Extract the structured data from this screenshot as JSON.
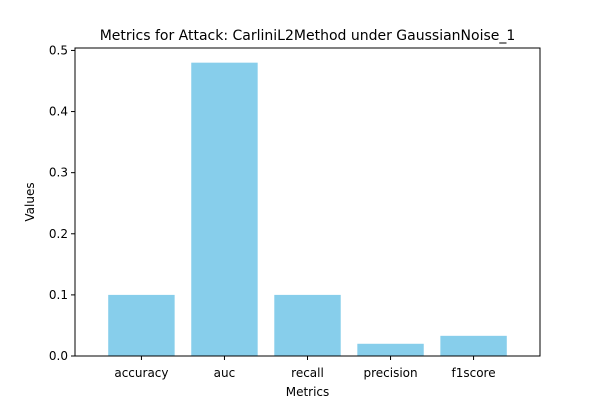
{
  "chart_data": {
    "type": "bar",
    "title": "Metrics for Attack: CarliniL2Method under GaussianNoise_1",
    "xlabel": "Metrics",
    "ylabel": "Values",
    "categories": [
      "accuracy",
      "auc",
      "recall",
      "precision",
      "f1score"
    ],
    "values": [
      0.1,
      0.48,
      0.1,
      0.02,
      0.033
    ],
    "ylim": [
      0,
      0.504
    ],
    "yticks": [
      0.0,
      0.1,
      0.2,
      0.3,
      0.4,
      0.5
    ],
    "ytick_labels": [
      "0.0",
      "0.1",
      "0.2",
      "0.3",
      "0.4",
      "0.5"
    ],
    "bar_color": "#87ceeb",
    "grid": false
  }
}
